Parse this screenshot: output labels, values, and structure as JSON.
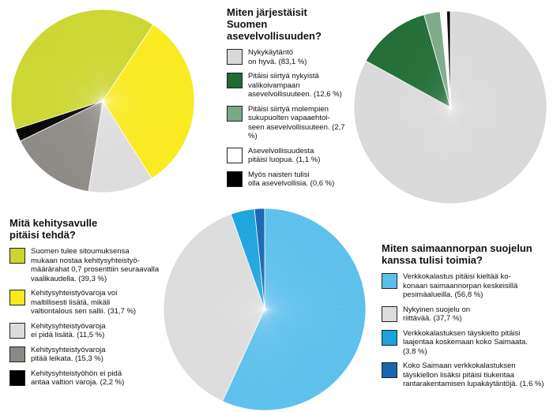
{
  "chart_data": [
    {
      "type": "pie",
      "title": "Miten järjestäisit Suomen\nasevelvollisuuden?",
      "slices": [
        {
          "label": "Nykykäytäntö\non hyvä. (83,1 %)",
          "value": 83.1,
          "color": "#d9d9d9"
        },
        {
          "label": "Pitäisi siirtyä nykyistä\nvalikoivampaan\nasevelvollisuuteen. (12,6 %)",
          "value": 12.6,
          "color": "#1e6b33"
        },
        {
          "label": "Pitäisi siirtyä molempien\nsukupuolten vapaaehtoi-\nseen asevelvollisuuteen. (2,7 %)",
          "value": 2.7,
          "color": "#7aa886"
        },
        {
          "label": "Asevelvollisuudesta\npitäisi luopua. (1,1 %)",
          "value": 1.1,
          "color": "#ffffff"
        },
        {
          "label": "Myös naisten tulisi\nolla asevelvollisia. (0,6 %)",
          "value": 0.6,
          "color": "#000000"
        }
      ]
    },
    {
      "type": "pie",
      "title": "Mitä kehitysavulle\npitäisi tehdä?",
      "slices": [
        {
          "label": "Suomen tulee sitoumuksensa\nmukaan nostaa kehitysyhteistyö-\nmäärärahat 0,7 prosenttiin seuraavalla\nvaalikaudella. (39,3 %)",
          "value": 39.3,
          "color": "#cbd62e"
        },
        {
          "label": "Kehitysyhteistyövaroja voi\nmaltillisesti lisätä, mikäli\nvaltiontalous sen sallii. (31,7 %)",
          "value": 31.7,
          "color": "#f9ea1b"
        },
        {
          "label": "Kehitysyhteistyövaroja\nei pidä lisätä. (11,5 %)",
          "value": 11.5,
          "color": "#dcdcdc"
        },
        {
          "label": "Kehitysyhteistyövaroja\npitää leikata. (15,3 %)",
          "value": 15.3,
          "color": "#8c8985"
        },
        {
          "label": "Kehitysyhteistyöhön ei pidä\nantaa valtion varoja. (2,2 %)",
          "value": 2.2,
          "color": "#000000"
        }
      ]
    },
    {
      "type": "pie",
      "title": "Miten saimaannorpan suojelun\nkanssa tulisi toimia?",
      "slices": [
        {
          "label": "Verkkokalastus pitäisi kieltää ko-\nkonaan saimaannorpan keskeisillä\npesimäalueilla. (56,8 %)",
          "value": 56.8,
          "color": "#5bbfec"
        },
        {
          "label": "Nykyinen suojelu on\nriittävää. (37,7 %)",
          "value": 37.7,
          "color": "#dcdcdc"
        },
        {
          "label": "Verkkokalastuksen täyskielto pitäisi\nlaajentaa koskemaan koko Saimaata.\n(3,8 %)",
          "value": 3.8,
          "color": "#1aa3dd"
        },
        {
          "label": "Koko Saimaan verkkokalastuksen\ntäyskiellon lisäksi pitäisi tiukentaa\nrantarakentamisen lupakäytäntöjä. (1,6 %)",
          "value": 1.6,
          "color": "#1666b0"
        }
      ]
    }
  ]
}
